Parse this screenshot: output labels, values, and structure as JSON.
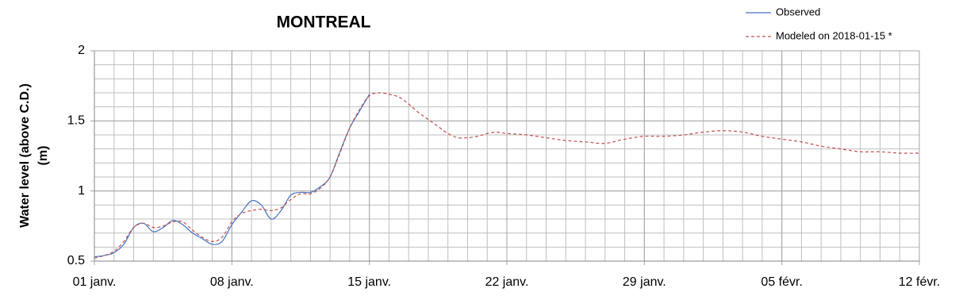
{
  "chart_data": {
    "type": "line",
    "title": "MONTREAL",
    "ylabel": [
      "Water level (above C.D.)",
      "(m)"
    ],
    "x": [
      0,
      0.5,
      1,
      1.5,
      2,
      2.5,
      3,
      3.5,
      4,
      4.5,
      5,
      5.5,
      6,
      6.5,
      7,
      7.5,
      8,
      8.5,
      9,
      9.5,
      10,
      10.5,
      11,
      11.5,
      12,
      12.5,
      13,
      13.5,
      14,
      14.5,
      15,
      15.5,
      16,
      16.5,
      17,
      17.5,
      18,
      18.5,
      19,
      19.5,
      20,
      20.5,
      21,
      22,
      23,
      24,
      25,
      26,
      27,
      28,
      29,
      30,
      31,
      32,
      33,
      34,
      35,
      36,
      37,
      38,
      39,
      40,
      41,
      42
    ],
    "series": [
      {
        "name": "Observed",
        "color": "#4472c4",
        "dashed": false,
        "values": [
          0.53,
          0.54,
          0.56,
          0.62,
          0.74,
          0.77,
          0.71,
          0.74,
          0.79,
          0.76,
          0.7,
          0.66,
          0.62,
          0.64,
          0.76,
          0.85,
          0.93,
          0.9,
          0.8,
          0.86,
          0.97,
          0.99,
          0.99,
          1.03,
          1.1,
          1.28,
          1.45,
          1.57,
          1.69,
          null,
          null,
          null,
          null,
          null,
          null,
          null,
          null,
          null,
          null,
          null,
          null,
          null,
          null,
          null,
          null,
          null,
          null,
          null,
          null,
          null,
          null,
          null,
          null,
          null,
          null,
          null,
          null,
          null,
          null,
          null,
          null,
          null,
          null,
          null
        ]
      },
      {
        "name": "Modeled on 2018-01-15 *",
        "color": "#c0504d",
        "dashed": true,
        "values": [
          0.52,
          0.54,
          0.57,
          0.64,
          0.74,
          0.77,
          0.74,
          0.75,
          0.78,
          0.78,
          0.72,
          0.67,
          0.64,
          0.67,
          0.78,
          0.84,
          0.86,
          0.87,
          0.86,
          0.88,
          0.94,
          0.98,
          0.98,
          1.02,
          1.1,
          1.27,
          1.45,
          1.58,
          1.68,
          1.7,
          1.69,
          1.67,
          1.62,
          1.56,
          1.51,
          1.46,
          1.41,
          1.38,
          1.38,
          1.39,
          1.41,
          1.42,
          1.41,
          1.4,
          1.38,
          1.36,
          1.35,
          1.34,
          1.37,
          1.39,
          1.39,
          1.4,
          1.42,
          1.43,
          1.42,
          1.39,
          1.37,
          1.35,
          1.32,
          1.3,
          1.28,
          1.28,
          1.27,
          1.27
        ]
      }
    ],
    "xlim": [
      0,
      42
    ],
    "xticks": [
      {
        "value": 0,
        "label": "01 janv."
      },
      {
        "value": 7,
        "label": "08 janv."
      },
      {
        "value": 14,
        "label": "15 janv."
      },
      {
        "value": 21,
        "label": "22 janv."
      },
      {
        "value": 28,
        "label": "29 janv."
      },
      {
        "value": 35,
        "label": "05 févr."
      },
      {
        "value": 42,
        "label": "12 févr."
      }
    ],
    "ylim": [
      0.5,
      2
    ],
    "yticks": [
      0.5,
      1,
      1.5,
      2
    ],
    "grid": true,
    "minor_grid": {
      "x": 1,
      "y": 0.1
    },
    "legend": "top-right"
  }
}
